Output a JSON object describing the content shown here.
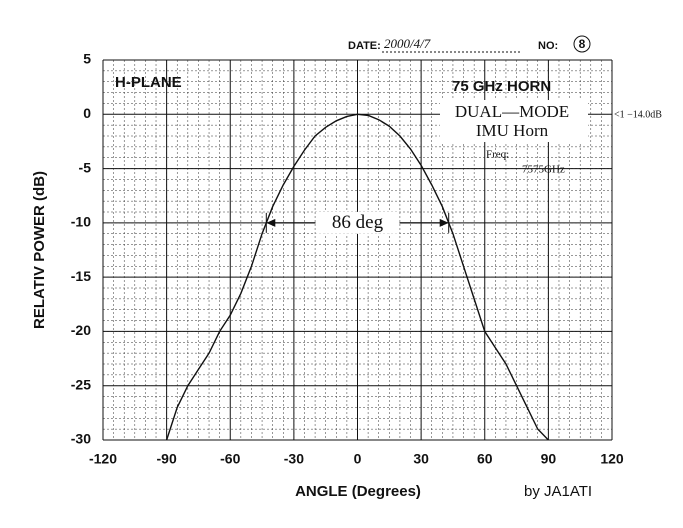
{
  "chart_data": {
    "type": "line",
    "x_label": "ANGLE (Degrees)",
    "y_label": "RELATIV POWER (dB)",
    "x": [
      -90,
      -85,
      -80,
      -75,
      -70,
      -65,
      -60,
      -55,
      -50,
      -45,
      -40,
      -35,
      -30,
      -25,
      -20,
      -15,
      -10,
      -5,
      0,
      5,
      10,
      15,
      20,
      25,
      30,
      35,
      40,
      45,
      50,
      55,
      60,
      65,
      70,
      75,
      80,
      85,
      90
    ],
    "values": [
      -30,
      -27,
      -25,
      -23.5,
      -22,
      -20,
      -18.5,
      -16.5,
      -14,
      -11,
      -8.5,
      -6.5,
      -4.8,
      -3.3,
      -2,
      -1.2,
      -0.6,
      -0.2,
      0,
      -0.1,
      -0.5,
      -1.1,
      -2,
      -3.2,
      -4.7,
      -6.5,
      -8.5,
      -11,
      -14,
      -17,
      -20,
      -21.5,
      -23,
      -25,
      -27,
      -29,
      -30
    ],
    "color": "#111111",
    "xlim": [
      -120,
      120
    ],
    "ylim": [
      -30,
      5
    ],
    "xticks": [
      -120,
      -90,
      -60,
      -30,
      0,
      30,
      60,
      90,
      120
    ],
    "yticks": [
      5,
      0,
      -5,
      -10,
      -15,
      -20,
      -25,
      -30
    ],
    "grid": true,
    "beamwidth": {
      "label": "86 deg",
      "from": -43,
      "to": 43,
      "level": -10
    },
    "annotations": {
      "plane": "H-PLANE",
      "horn": "75 GHz HORN",
      "mode": "DUAL—MODE",
      "name": "IMU Horn",
      "freq_label": "Freq:",
      "freq": "7575GHz",
      "peak": "<1 −14.0dB",
      "author": "by JA1ATI",
      "date_label": "DATE:",
      "date": "2000/4/7",
      "no_label": "NO:",
      "no": "8"
    }
  }
}
